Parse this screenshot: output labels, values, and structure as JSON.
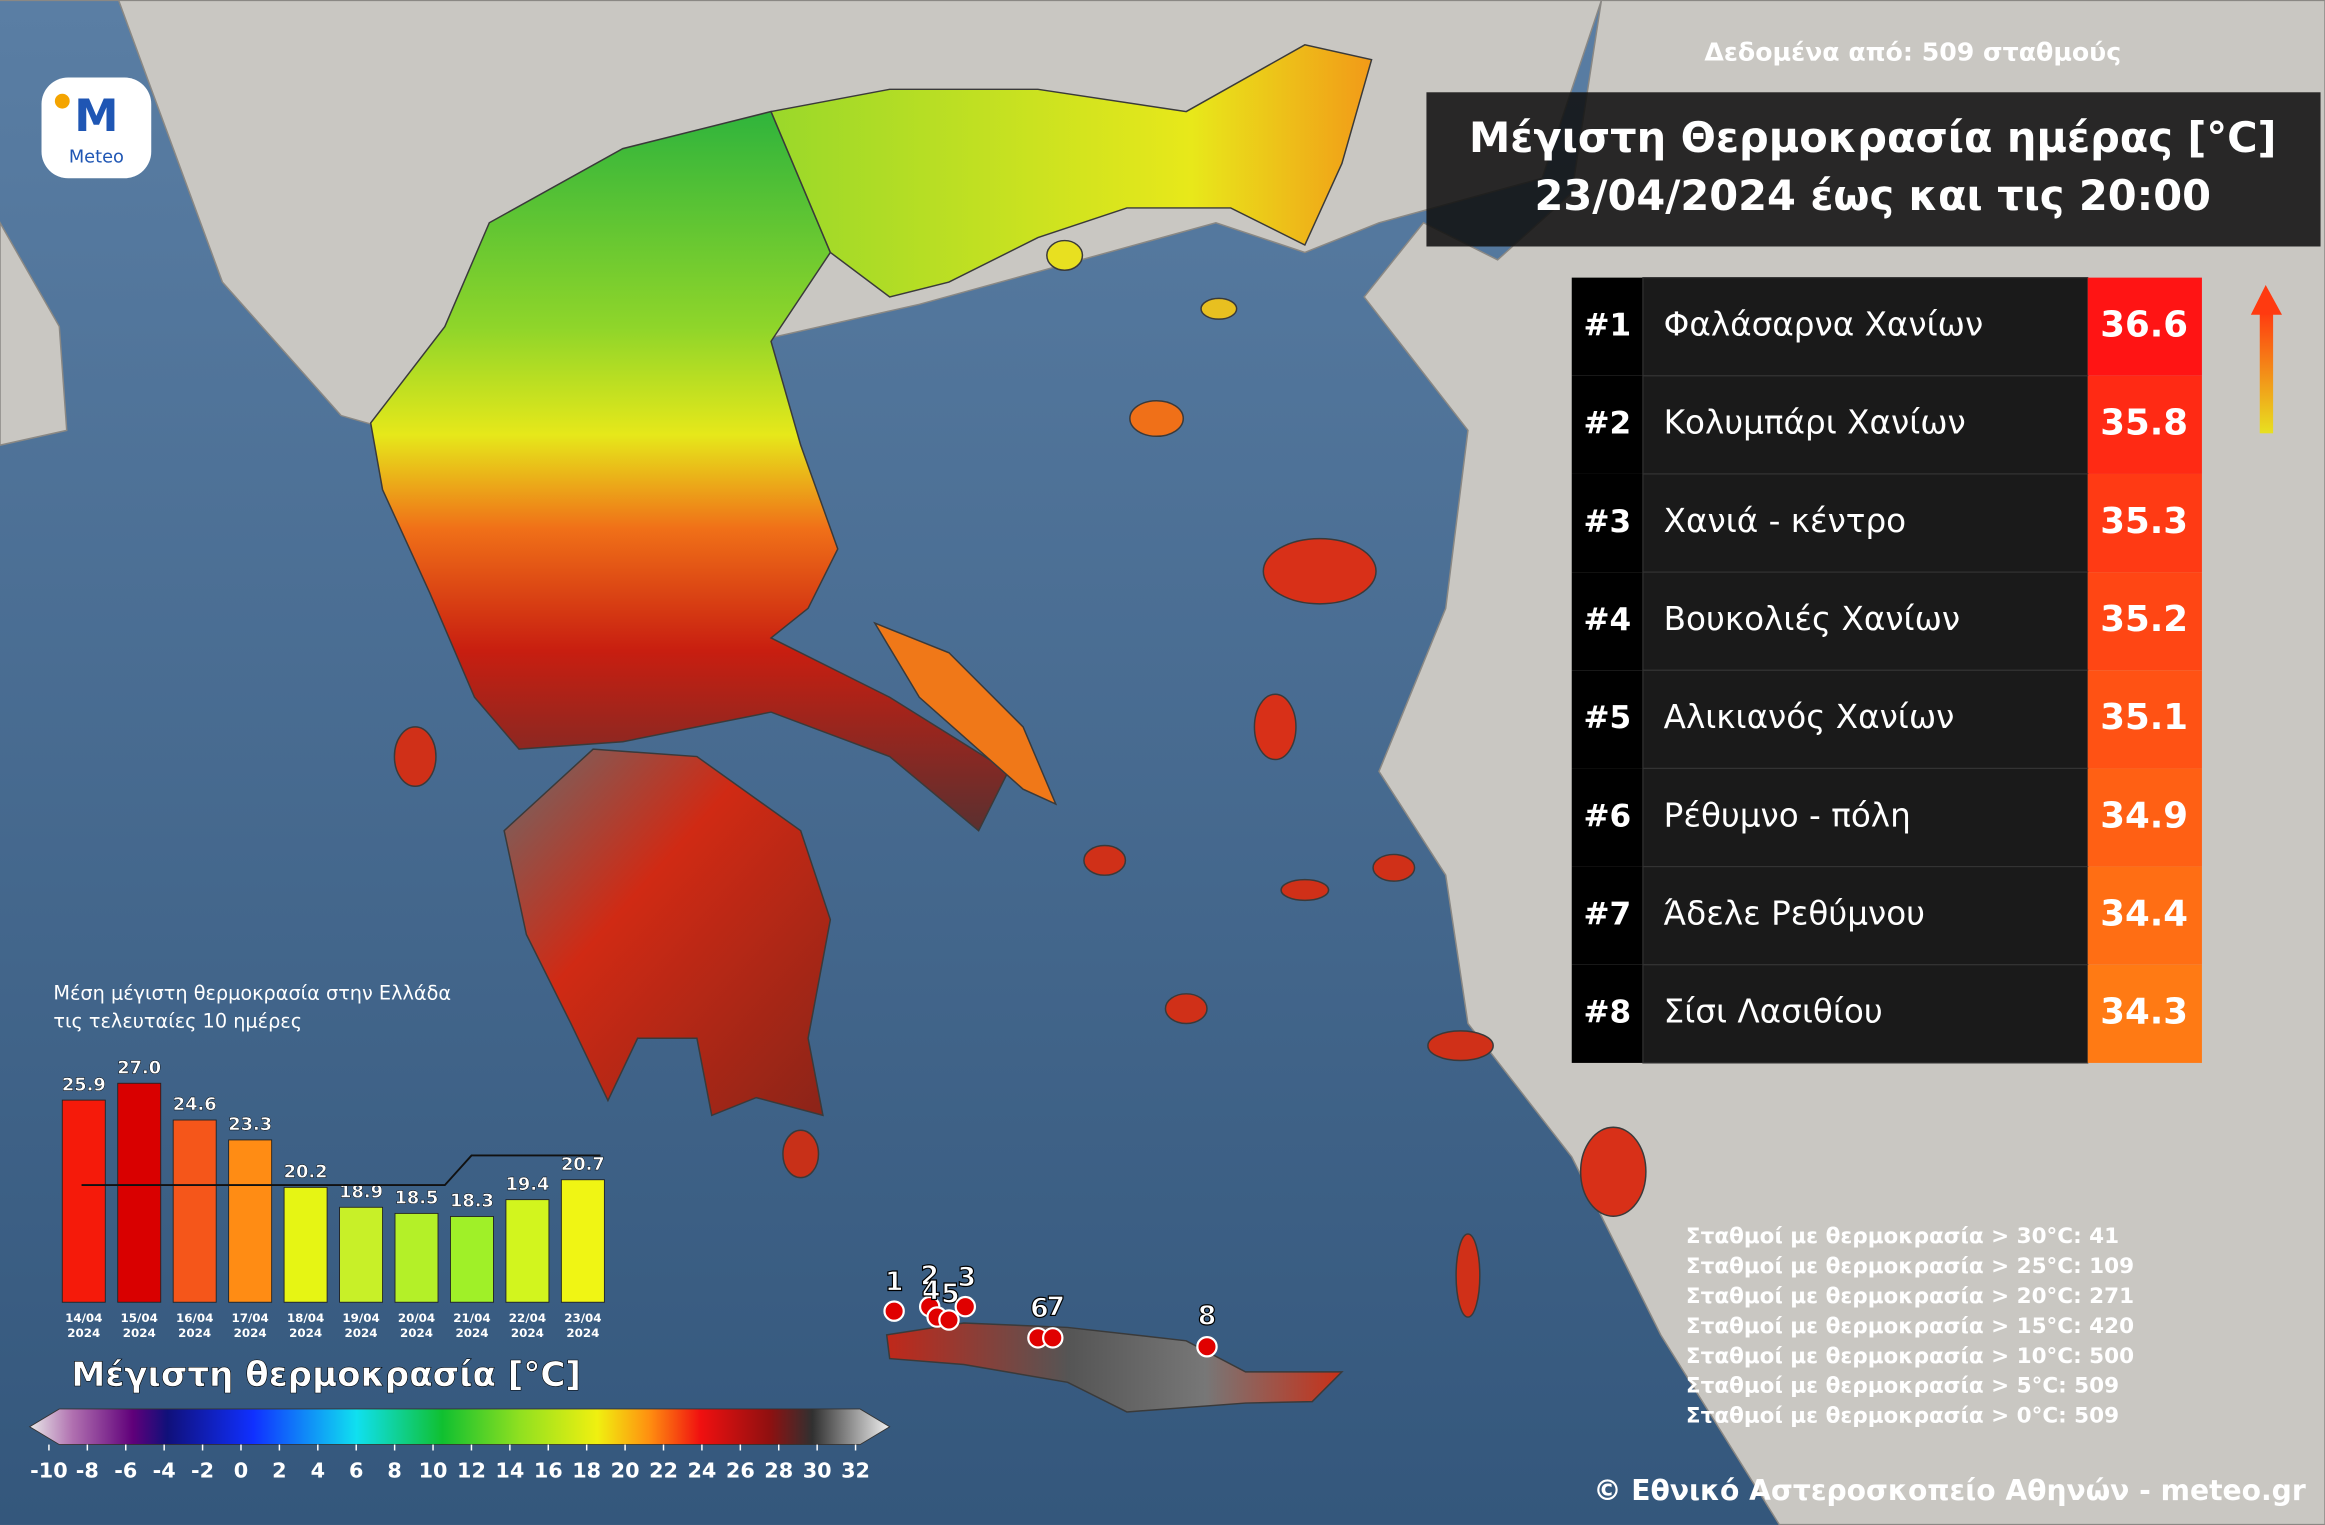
{
  "header": {
    "source": "Δεδομένα από: 509 σταθμούς",
    "title": "Μέγιστη Θερμοκρασία ημέρας [°C]",
    "subtitle": "23/04/2024 έως και τις 20:00",
    "logo": "Meteo"
  },
  "ranking": {
    "rows": [
      {
        "rank": "#1",
        "station": "Φαλάσαρνα Χανίων",
        "value": 36.6,
        "color": "#ff1414"
      },
      {
        "rank": "#2",
        "station": "Κολυμπάρι Χανίων",
        "value": 35.8,
        "color": "#ff2a14"
      },
      {
        "rank": "#3",
        "station": "Χανιά - κέντρο",
        "value": 35.3,
        "color": "#ff3a14"
      },
      {
        "rank": "#4",
        "station": "Βουκολιές Χανίων",
        "value": 35.2,
        "color": "#ff4614"
      },
      {
        "rank": "#5",
        "station": "Αλικιανός Χανίων",
        "value": 35.1,
        "color": "#ff5214"
      },
      {
        "rank": "#6",
        "station": "Ρέθυμνο - πόλη",
        "value": 34.9,
        "color": "#ff6014"
      },
      {
        "rank": "#7",
        "station": "Άδελε Ρεθύμνου",
        "value": 34.4,
        "color": "#ff6e14"
      },
      {
        "rank": "#8",
        "station": "Σίσι Λασιθίου",
        "value": 34.3,
        "color": "#ff7a14"
      }
    ]
  },
  "chart_data": {
    "type": "bar",
    "title": [
      "Μέση μέγιστη θερμοκρασία στην Ελλάδα",
      "τις τελευταίες 10 ημέρες"
    ],
    "categories": [
      "14/04",
      "15/04",
      "16/04",
      "17/04",
      "18/04",
      "19/04",
      "20/04",
      "21/04",
      "22/04",
      "23/04"
    ],
    "category_years": [
      "2024",
      "2024",
      "2024",
      "2024",
      "2024",
      "2024",
      "2024",
      "2024",
      "2024",
      "2024"
    ],
    "values": [
      25.9,
      27.0,
      24.6,
      23.3,
      20.2,
      18.9,
      18.5,
      18.3,
      19.4,
      20.7
    ],
    "value_labels": [
      "25.9",
      "27.0",
      "24.6",
      "23.3",
      "20.2",
      "18.9",
      "18.5",
      "18.3",
      "19.4",
      "20.7"
    ],
    "colors": [
      "#f51a0a",
      "#d90000",
      "#f5561a",
      "#ff8c14",
      "#e6f514",
      "#c8f028",
      "#b4f028",
      "#a0f028",
      "#d2f51e",
      "#f0f514"
    ],
    "ylim": [
      12.7,
      28
    ]
  },
  "colorbar": {
    "title": "Μέγιστη θερμοκρασία [°C]",
    "ticks": [
      -10,
      -8,
      -6,
      -4,
      -2,
      0,
      2,
      4,
      6,
      8,
      10,
      12,
      14,
      16,
      18,
      20,
      22,
      24,
      26,
      28,
      30,
      32
    ],
    "range": [
      -10,
      32
    ]
  },
  "stations": [
    "Σταθμοί με θερμοκρασία > 30°C: 41",
    "Σταθμοί με θερμοκρασία > 25°C: 109",
    "Σταθμοί με θερμοκρασία > 20°C: 271",
    "Σταθμοί με θερμοκρασία > 15°C: 420",
    "Σταθμοί με θερμοκρασία > 10°C: 500",
    "Σταθμοί με θερμοκρασία > 5°C: 509",
    "Σταθμοί με θερμοκρασία > 0°C: 509"
  ],
  "map": {
    "markers": [
      "1",
      "2",
      "4",
      "5",
      "3",
      "6",
      "7",
      "8"
    ]
  },
  "footer": {
    "copyright": "© Εθνικό Αστεροσκοπείο Αθηνών - meteo.gr"
  }
}
